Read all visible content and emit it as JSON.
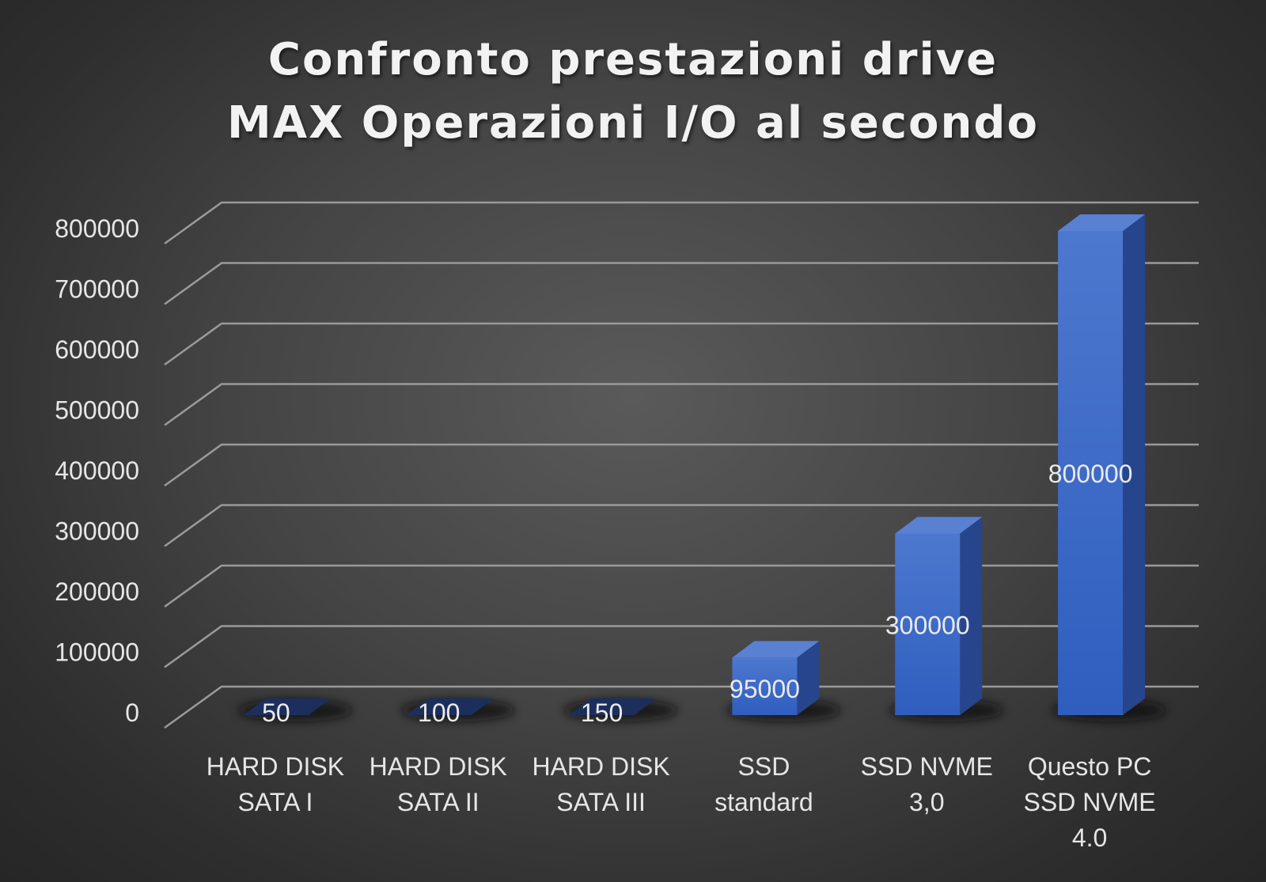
{
  "chart_data": {
    "type": "bar",
    "title_lines": [
      "Confronto prestazioni drive",
      "MAX Operazioni I/O al secondo"
    ],
    "categories": [
      [
        "HARD DISK",
        "SATA I"
      ],
      [
        "HARD DISK",
        "SATA II"
      ],
      [
        "HARD DISK",
        "SATA III"
      ],
      [
        "SSD",
        "standard"
      ],
      [
        "SSD NVME",
        "3,0"
      ],
      [
        "Questo PC",
        "SSD NVME",
        "4.0"
      ]
    ],
    "values": [
      50,
      100,
      150,
      95000,
      300000,
      800000
    ],
    "data_labels": [
      "50",
      "100",
      "150",
      "95000",
      "300000",
      "800000"
    ],
    "yticks": [
      "0",
      "100000",
      "200000",
      "300000",
      "400000",
      "500000",
      "600000",
      "700000",
      "800000"
    ],
    "ylim": [
      0,
      800000
    ],
    "grid": true,
    "style": "3d-column",
    "colors": {
      "bar_front": "#3a66c4",
      "bar_side": "#27458d",
      "bar_top": "#5a80d2",
      "grid": "#9a9a9a",
      "text": "#e6e6e6"
    }
  }
}
